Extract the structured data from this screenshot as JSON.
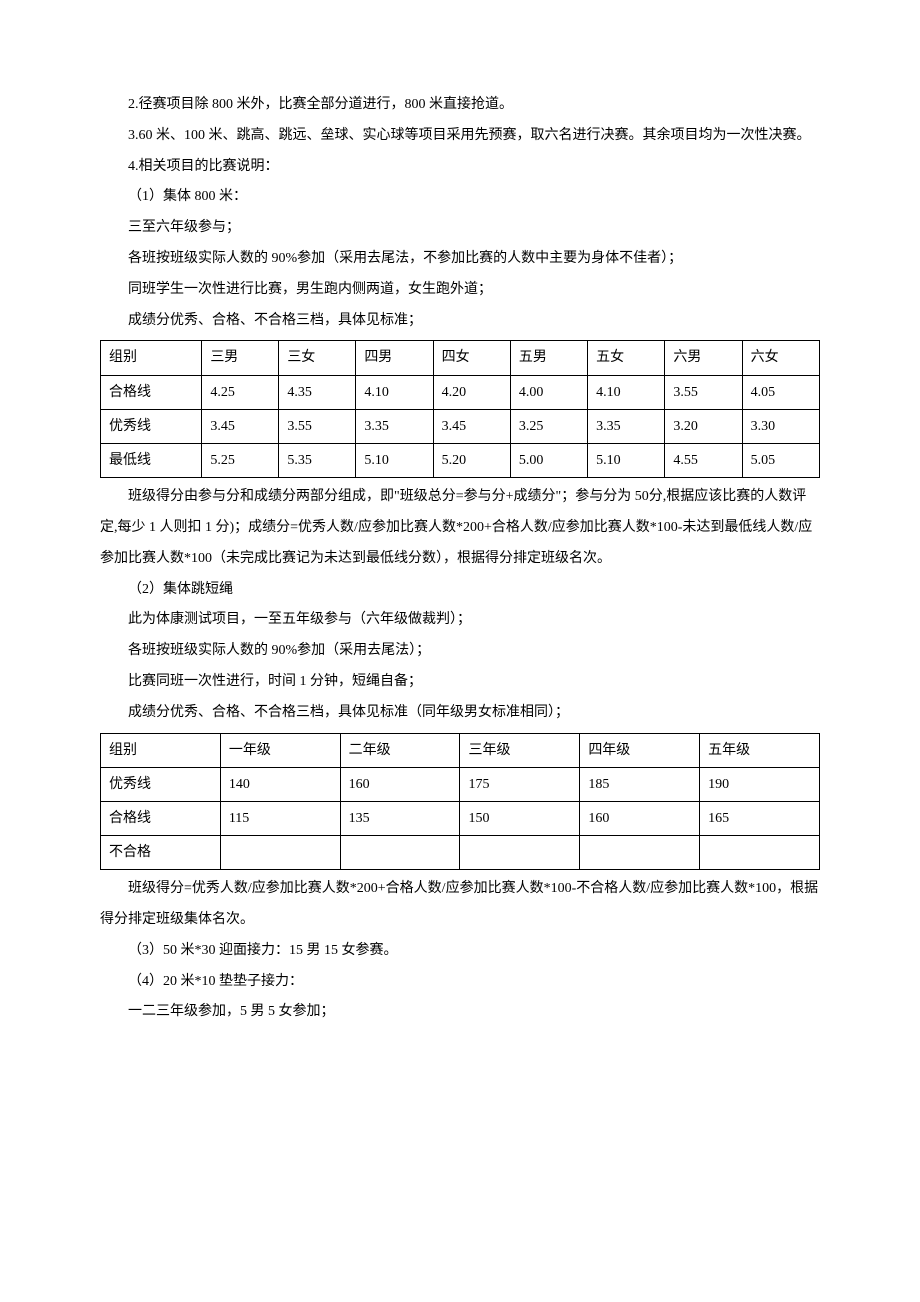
{
  "paragraphs": {
    "p1": "2.径赛项目除 800 米外，比赛全部分道进行，800 米直接抢道。",
    "p2": "3.60 米、100 米、跳高、跳远、垒球、实心球等项目采用先预赛，取六名进行决赛。其余项目均为一次性决赛。",
    "p3": "4.相关项目的比赛说明：",
    "p4": "（1）集体 800 米：",
    "p5": "三至六年级参与；",
    "p6": "各班按班级实际人数的 90%参加（采用去尾法，不参加比赛的人数中主要为身体不佳者）；",
    "p7": "同班学生一次性进行比赛，男生跑内侧两道，女生跑外道；",
    "p8": "成绩分优秀、合格、不合格三档，具体见标准；",
    "p9": "班级得分由参与分和成绩分两部分组成，即\"班级总分=参与分+成绩分\"；参与分为 50分,根据应该比赛的人数评定,每少 1 人则扣 1 分)；成绩分=优秀人数/应参加比赛人数*200+合格人数/应参加比赛人数*100-未达到最低线人数/应参加比赛人数*100（未完成比赛记为未达到最低线分数），根据得分排定班级名次。",
    "p10": "（2）集体跳短绳",
    "p11": "此为体康测试项目，一至五年级参与（六年级做裁判）；",
    "p12": "各班按班级实际人数的 90%参加（采用去尾法）；",
    "p13": "比赛同班一次性进行，时间 1 分钟，短绳自备；",
    "p14": "成绩分优秀、合格、不合格三档，具体见标准（同年级男女标准相同）；",
    "p15": "班级得分=优秀人数/应参加比赛人数*200+合格人数/应参加比赛人数*100-不合格人数/应参加比赛人数*100，根据得分排定班级集体名次。",
    "p16": "（3）50 米*30 迎面接力：15 男 15 女参赛。",
    "p17": "（4）20 米*10 垫垫子接力：",
    "p18": "一二三年级参加，5 男 5 女参加；"
  },
  "table1": {
    "headers": [
      "组别",
      "三男",
      "三女",
      "四男",
      "四女",
      "五男",
      "五女",
      "六男",
      "六女"
    ],
    "rows": [
      [
        "合格线",
        "4.25",
        "4.35",
        "4.10",
        "4.20",
        "4.00",
        "4.10",
        "3.55",
        "4.05"
      ],
      [
        "优秀线",
        "3.45",
        "3.55",
        "3.35",
        "3.45",
        "3.25",
        "3.35",
        "3.20",
        "3.30"
      ],
      [
        "最低线",
        "5.25",
        "5.35",
        "5.10",
        "5.20",
        "5.00",
        "5.10",
        "4.55",
        "5.05"
      ]
    ]
  },
  "table2": {
    "headers": [
      "组别",
      "一年级",
      "二年级",
      "三年级",
      "四年级",
      "五年级"
    ],
    "rows": [
      [
        "优秀线",
        "140",
        "160",
        "175",
        "185",
        "190"
      ],
      [
        "合格线",
        "115",
        "135",
        "150",
        "160",
        "165"
      ],
      [
        "不合格",
        "",
        "",
        "",
        "",
        ""
      ]
    ]
  }
}
